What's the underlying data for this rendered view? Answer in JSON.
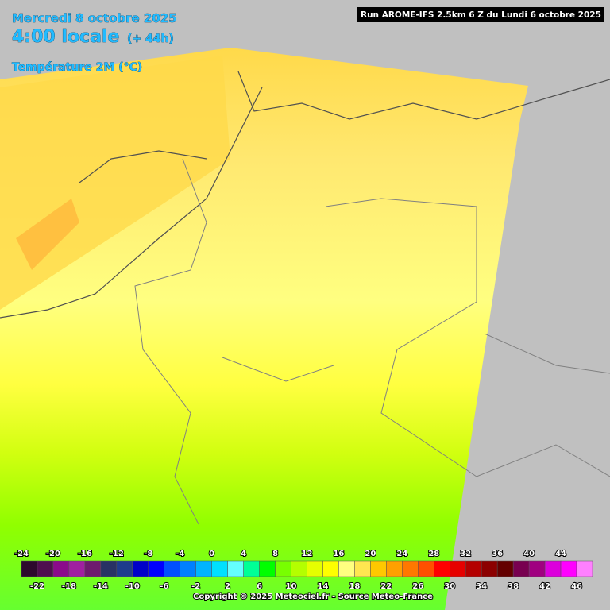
{
  "header": {
    "date": "Mercredi 8 octobre 2025",
    "time": "4:00 locale",
    "lead": "(+ 44h)",
    "parameter": "Température 2M (°C)",
    "run": "Run AROME-IFS 2.5km 6 Z du Lundi 6 octobre 2025"
  },
  "legend": {
    "labels": [
      -24,
      -22,
      -20,
      -18,
      -16,
      -14,
      -12,
      -10,
      -8,
      -6,
      -4,
      -2,
      0,
      2,
      4,
      6,
      8,
      10,
      12,
      14,
      16,
      18,
      20,
      22,
      24,
      26,
      28,
      30,
      32,
      34,
      36,
      38,
      40,
      42,
      44,
      46
    ],
    "colors": [
      "#2d0a2d",
      "#4f0f4f",
      "#8b0a8b",
      "#a020a0",
      "#6e1a6e",
      "#283264",
      "#1e3c8c",
      "#0000c8",
      "#0000ff",
      "#0050ff",
      "#0080ff",
      "#00b4ff",
      "#00e0ff",
      "#64ffff",
      "#00ff96",
      "#00ff00",
      "#78ff00",
      "#b4ff00",
      "#e6ff00",
      "#ffff00",
      "#ffff80",
      "#ffe650",
      "#ffc800",
      "#ffa000",
      "#ff7800",
      "#ff5000",
      "#ff0000",
      "#e60000",
      "#b40000",
      "#8c0000",
      "#640000",
      "#780050",
      "#a00080",
      "#dc00dc",
      "#ff00ff",
      "#ff80ff"
    ]
  },
  "footer": {
    "copyright": "Copyright © 2025 Meteociel.fr - Source Meteo-France"
  }
}
